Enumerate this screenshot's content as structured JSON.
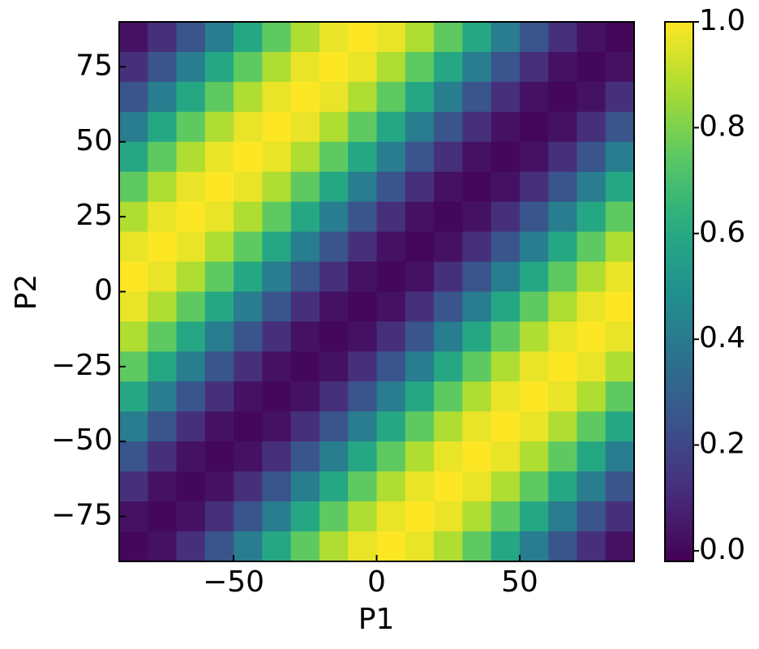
{
  "chart_data": {
    "type": "heatmap",
    "colormap": "viridis",
    "x_label": "P1",
    "y_label": "P2",
    "x": [
      -85,
      -75,
      -65,
      -55,
      -45,
      -35,
      -25,
      -15,
      -5,
      5,
      15,
      25,
      35,
      45,
      55,
      65,
      75,
      85
    ],
    "y": [
      85,
      75,
      65,
      55,
      45,
      35,
      25,
      15,
      5,
      -5,
      -15,
      -25,
      -35,
      -45,
      -55,
      -65,
      -75,
      -85
    ],
    "values": [
      [
        0.03,
        0.12,
        0.25,
        0.41,
        0.59,
        0.75,
        0.88,
        0.97,
        1,
        0.97,
        0.88,
        0.75,
        0.59,
        0.41,
        0.25,
        0.12,
        0.03,
        0
      ],
      [
        0.12,
        0.25,
        0.41,
        0.59,
        0.75,
        0.88,
        0.97,
        1,
        0.97,
        0.88,
        0.75,
        0.59,
        0.41,
        0.25,
        0.12,
        0.03,
        0,
        0.03
      ],
      [
        0.25,
        0.41,
        0.59,
        0.75,
        0.88,
        0.97,
        1,
        0.97,
        0.88,
        0.75,
        0.59,
        0.41,
        0.25,
        0.12,
        0.03,
        0,
        0.03,
        0.12
      ],
      [
        0.41,
        0.59,
        0.75,
        0.88,
        0.97,
        1,
        0.97,
        0.88,
        0.75,
        0.59,
        0.41,
        0.25,
        0.12,
        0.03,
        0,
        0.03,
        0.12,
        0.25
      ],
      [
        0.59,
        0.75,
        0.88,
        0.97,
        1,
        0.97,
        0.88,
        0.75,
        0.59,
        0.41,
        0.25,
        0.12,
        0.03,
        0,
        0.03,
        0.12,
        0.25,
        0.41
      ],
      [
        0.75,
        0.88,
        0.97,
        1,
        0.97,
        0.88,
        0.75,
        0.59,
        0.41,
        0.25,
        0.12,
        0.03,
        0,
        0.03,
        0.12,
        0.25,
        0.41,
        0.59
      ],
      [
        0.88,
        0.97,
        1,
        0.97,
        0.88,
        0.75,
        0.59,
        0.41,
        0.25,
        0.12,
        0.03,
        0,
        0.03,
        0.12,
        0.25,
        0.41,
        0.59,
        0.75
      ],
      [
        0.97,
        1,
        0.97,
        0.88,
        0.75,
        0.59,
        0.41,
        0.25,
        0.12,
        0.03,
        0,
        0.03,
        0.12,
        0.25,
        0.41,
        0.59,
        0.75,
        0.88
      ],
      [
        1,
        0.97,
        0.88,
        0.75,
        0.59,
        0.41,
        0.25,
        0.12,
        0.03,
        0,
        0.03,
        0.12,
        0.25,
        0.41,
        0.59,
        0.75,
        0.88,
        0.97
      ],
      [
        0.97,
        0.88,
        0.75,
        0.59,
        0.41,
        0.25,
        0.12,
        0.03,
        0,
        0.03,
        0.12,
        0.25,
        0.41,
        0.59,
        0.75,
        0.88,
        0.97,
        1
      ],
      [
        0.88,
        0.75,
        0.59,
        0.41,
        0.25,
        0.12,
        0.03,
        0,
        0.03,
        0.12,
        0.25,
        0.41,
        0.59,
        0.75,
        0.88,
        0.97,
        1,
        0.97
      ],
      [
        0.75,
        0.59,
        0.41,
        0.25,
        0.12,
        0.03,
        0,
        0.03,
        0.12,
        0.25,
        0.41,
        0.59,
        0.75,
        0.88,
        0.97,
        1,
        0.97,
        0.88
      ],
      [
        0.59,
        0.41,
        0.25,
        0.12,
        0.03,
        0,
        0.03,
        0.12,
        0.25,
        0.41,
        0.59,
        0.75,
        0.88,
        0.97,
        1,
        0.97,
        0.88,
        0.75
      ],
      [
        0.41,
        0.25,
        0.12,
        0.03,
        0,
        0.03,
        0.12,
        0.25,
        0.41,
        0.59,
        0.75,
        0.88,
        0.97,
        1,
        0.97,
        0.88,
        0.75,
        0.59
      ],
      [
        0.25,
        0.12,
        0.03,
        0,
        0.03,
        0.12,
        0.25,
        0.41,
        0.59,
        0.75,
        0.88,
        0.97,
        1,
        0.97,
        0.88,
        0.75,
        0.59,
        0.41
      ],
      [
        0.12,
        0.03,
        0,
        0.03,
        0.12,
        0.25,
        0.41,
        0.59,
        0.75,
        0.88,
        0.97,
        1,
        0.97,
        0.88,
        0.75,
        0.59,
        0.41,
        0.25
      ],
      [
        0.03,
        0,
        0.03,
        0.12,
        0.25,
        0.41,
        0.59,
        0.75,
        0.88,
        0.97,
        1,
        0.97,
        0.88,
        0.75,
        0.59,
        0.41,
        0.25,
        0.12
      ],
      [
        0,
        0.03,
        0.12,
        0.25,
        0.41,
        0.59,
        0.75,
        0.88,
        0.97,
        1,
        0.97,
        0.88,
        0.75,
        0.59,
        0.41,
        0.25,
        0.12,
        0.03
      ]
    ],
    "xlim": [
      -90,
      90
    ],
    "ylim": [
      -90,
      90
    ],
    "xticks": [
      {
        "value": -50,
        "label": "−50"
      },
      0,
      50
    ],
    "yticks": [
      {
        "value": -75,
        "label": "−75"
      },
      {
        "value": -50,
        "label": "−50"
      },
      {
        "value": -25,
        "label": "−25"
      },
      0,
      25,
      50,
      75
    ],
    "zlim": [
      -0.02,
      1
    ],
    "zticks": [
      {
        "value": 0,
        "label": "0.0"
      },
      {
        "value": 0.2,
        "label": "0.2"
      },
      {
        "value": 0.4,
        "label": "0.4"
      },
      {
        "value": 0.6,
        "label": "0.6"
      },
      {
        "value": 0.8,
        "label": "0.8"
      },
      {
        "value": 1,
        "label": "1.0"
      }
    ]
  }
}
